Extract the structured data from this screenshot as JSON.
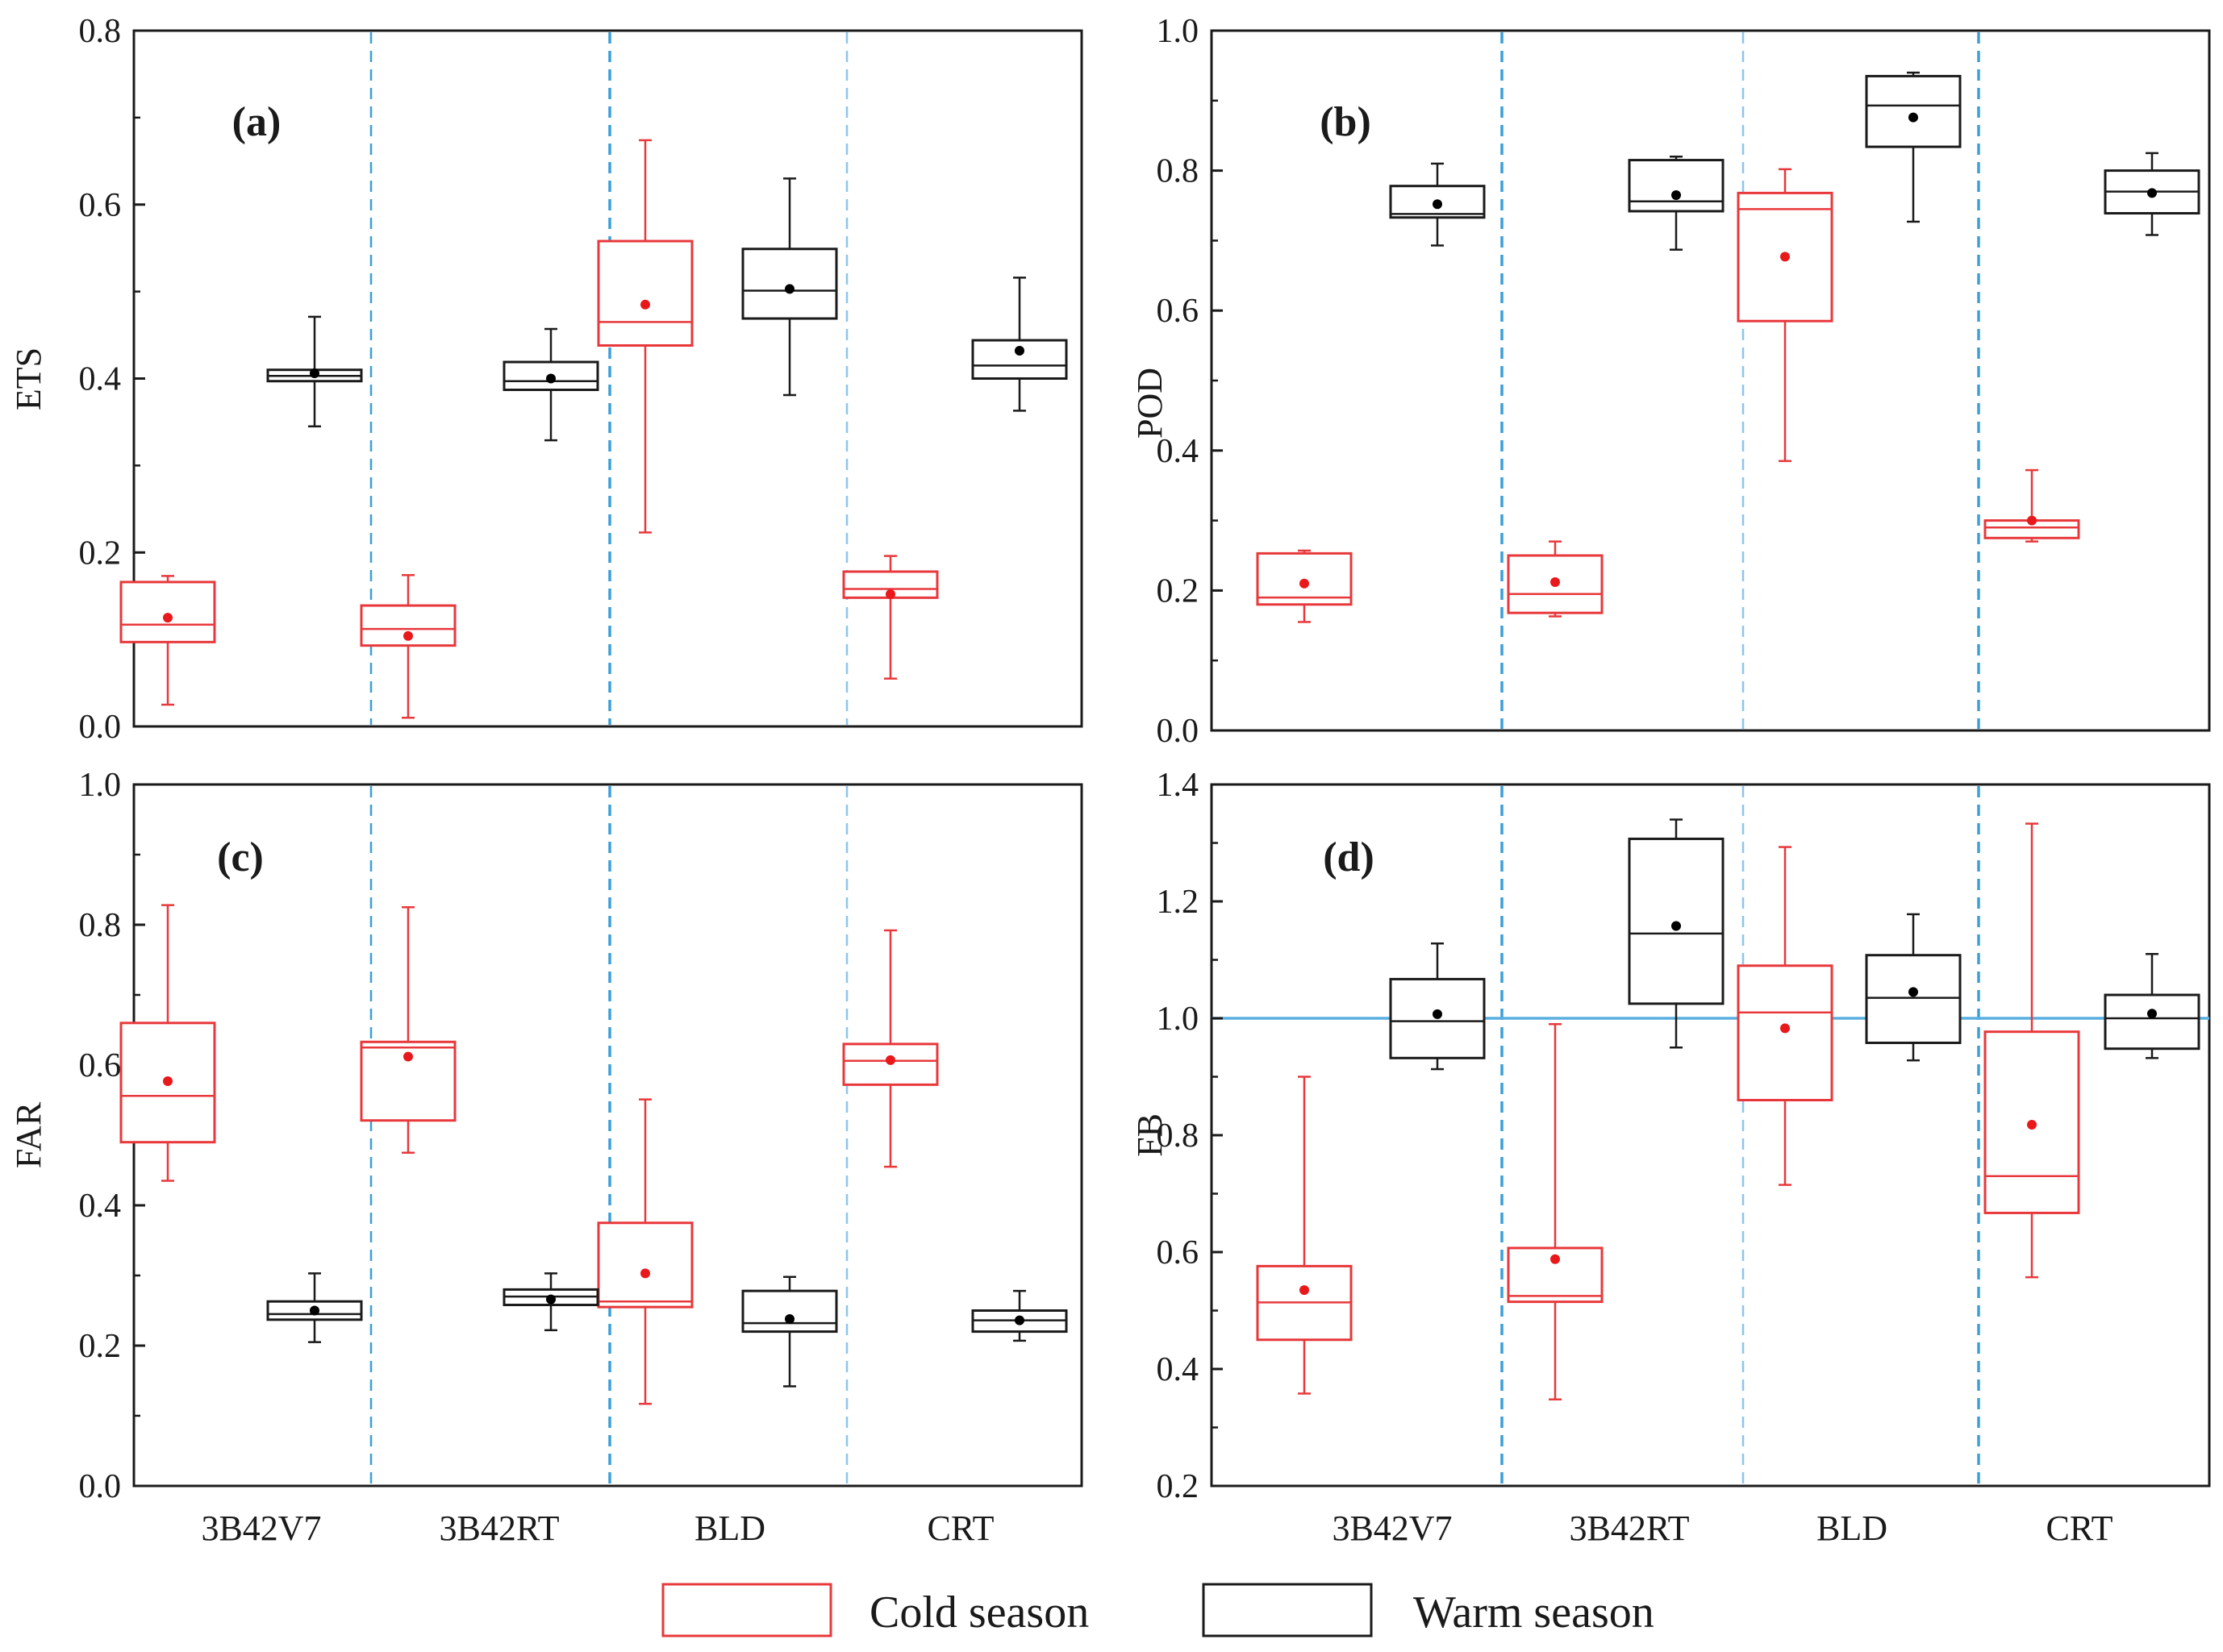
{
  "colors": {
    "cold": "#e8383b",
    "warm": "#1a1a1a",
    "mean_cold": "#e8181b",
    "mean_warm": "#000000",
    "separator": "#3b9fd8",
    "separator_light": "#8cc6ec",
    "reference_line": "#5aaee0",
    "axis": "#1a1a1a"
  },
  "legend": {
    "cold_label": "Cold season",
    "warm_label": "Warm season"
  },
  "chart_data": [
    {
      "type": "box",
      "panel": "(a)",
      "ylabel": "ETS",
      "ylim": [
        0.0,
        0.8
      ],
      "yticks": [
        "0.0",
        "0.2",
        "0.4",
        "0.6",
        "0.8"
      ],
      "categories": [
        "3B42V7",
        "3B42RT",
        "BLD",
        "CRT"
      ],
      "show_xticklabels": true,
      "series": [
        {
          "name": "Cold season",
          "boxes": [
            {
              "whisker_low": 0.025,
              "q1": 0.097,
              "median": 0.117,
              "q3": 0.166,
              "whisker_high": 0.173,
              "mean": 0.125
            },
            {
              "whisker_low": 0.01,
              "q1": 0.093,
              "median": 0.112,
              "q3": 0.139,
              "whisker_high": 0.174,
              "mean": 0.104
            },
            {
              "whisker_low": 0.223,
              "q1": 0.438,
              "median": 0.465,
              "q3": 0.558,
              "whisker_high": 0.674,
              "mean": 0.485
            },
            {
              "whisker_low": 0.055,
              "q1": 0.148,
              "median": 0.158,
              "q3": 0.178,
              "whisker_high": 0.196,
              "mean": 0.152
            }
          ]
        },
        {
          "name": "Warm season",
          "boxes": [
            {
              "whisker_low": 0.345,
              "q1": 0.397,
              "median": 0.403,
              "q3": 0.41,
              "whisker_high": 0.471,
              "mean": 0.406
            },
            {
              "whisker_low": 0.329,
              "q1": 0.387,
              "median": 0.397,
              "q3": 0.419,
              "whisker_high": 0.457,
              "mean": 0.4
            },
            {
              "whisker_low": 0.381,
              "q1": 0.469,
              "median": 0.501,
              "q3": 0.549,
              "whisker_high": 0.63,
              "mean": 0.503
            },
            {
              "whisker_low": 0.363,
              "q1": 0.4,
              "median": 0.415,
              "q3": 0.444,
              "whisker_high": 0.516,
              "mean": 0.432
            }
          ]
        }
      ]
    },
    {
      "type": "box",
      "panel": "(b)",
      "ylabel": "POD",
      "ylim": [
        0.0,
        1.0
      ],
      "yticks": [
        "0.0",
        "0.2",
        "0.4",
        "0.6",
        "0.8",
        "1.0"
      ],
      "categories": [
        "3B42V7",
        "3B42RT",
        "BLD",
        "CRT"
      ],
      "show_xticklabels": false,
      "series": [
        {
          "name": "Cold season",
          "boxes": [
            {
              "whisker_low": 0.155,
              "q1": 0.18,
              "median": 0.19,
              "q3": 0.253,
              "whisker_high": 0.257,
              "mean": 0.21
            },
            {
              "whisker_low": 0.163,
              "q1": 0.168,
              "median": 0.195,
              "q3": 0.25,
              "whisker_high": 0.27,
              "mean": 0.212
            },
            {
              "whisker_low": 0.385,
              "q1": 0.585,
              "median": 0.745,
              "q3": 0.768,
              "whisker_high": 0.802,
              "mean": 0.677
            },
            {
              "whisker_low": 0.27,
              "q1": 0.275,
              "median": 0.29,
              "q3": 0.3,
              "whisker_high": 0.372,
              "mean": 0.3
            }
          ]
        },
        {
          "name": "Warm season",
          "boxes": [
            {
              "whisker_low": 0.693,
              "q1": 0.733,
              "median": 0.738,
              "q3": 0.778,
              "whisker_high": 0.81,
              "mean": 0.752
            },
            {
              "whisker_low": 0.687,
              "q1": 0.742,
              "median": 0.756,
              "q3": 0.815,
              "whisker_high": 0.82,
              "mean": 0.765
            },
            {
              "whisker_low": 0.727,
              "q1": 0.834,
              "median": 0.893,
              "q3": 0.935,
              "whisker_high": 0.94,
              "mean": 0.876
            },
            {
              "whisker_low": 0.708,
              "q1": 0.739,
              "median": 0.77,
              "q3": 0.8,
              "whisker_high": 0.825,
              "mean": 0.768
            }
          ]
        }
      ]
    },
    {
      "type": "box",
      "panel": "(c)",
      "ylabel": "FAR",
      "ylim": [
        0.0,
        1.0
      ],
      "yticks": [
        "0.0",
        "0.2",
        "0.4",
        "0.6",
        "0.8",
        "1.0"
      ],
      "categories": [
        "3B42V7",
        "3B42RT",
        "BLD",
        "CRT"
      ],
      "show_xticklabels": true,
      "series": [
        {
          "name": "Cold season",
          "boxes": [
            {
              "whisker_low": 0.435,
              "q1": 0.49,
              "median": 0.556,
              "q3": 0.66,
              "whisker_high": 0.828,
              "mean": 0.577
            },
            {
              "whisker_low": 0.475,
              "q1": 0.521,
              "median": 0.625,
              "q3": 0.633,
              "whisker_high": 0.825,
              "mean": 0.612
            },
            {
              "whisker_low": 0.117,
              "q1": 0.255,
              "median": 0.263,
              "q3": 0.375,
              "whisker_high": 0.551,
              "mean": 0.303
            },
            {
              "whisker_low": 0.455,
              "q1": 0.572,
              "median": 0.606,
              "q3": 0.63,
              "whisker_high": 0.792,
              "mean": 0.607
            }
          ]
        },
        {
          "name": "Warm season",
          "boxes": [
            {
              "whisker_low": 0.205,
              "q1": 0.237,
              "median": 0.245,
              "q3": 0.263,
              "whisker_high": 0.303,
              "mean": 0.25
            },
            {
              "whisker_low": 0.222,
              "q1": 0.258,
              "median": 0.27,
              "q3": 0.28,
              "whisker_high": 0.303,
              "mean": 0.266
            },
            {
              "whisker_low": 0.142,
              "q1": 0.22,
              "median": 0.232,
              "q3": 0.278,
              "whisker_high": 0.298,
              "mean": 0.238
            },
            {
              "whisker_low": 0.207,
              "q1": 0.22,
              "median": 0.236,
              "q3": 0.25,
              "whisker_high": 0.278,
              "mean": 0.236
            }
          ]
        }
      ]
    },
    {
      "type": "box",
      "panel": "(d)",
      "ylabel": "FB",
      "ylim": [
        0.2,
        1.4
      ],
      "yticks": [
        "0.2",
        "0.4",
        "0.6",
        "0.8",
        "1.0",
        "1.2",
        "1.4"
      ],
      "categories": [
        "3B42V7",
        "3B42RT",
        "BLD",
        "CRT"
      ],
      "show_xticklabels": true,
      "reference_line": 1.0,
      "series": [
        {
          "name": "Cold season",
          "boxes": [
            {
              "whisker_low": 0.358,
              "q1": 0.45,
              "median": 0.514,
              "q3": 0.576,
              "whisker_high": 0.9,
              "mean": 0.535
            },
            {
              "whisker_low": 0.348,
              "q1": 0.515,
              "median": 0.525,
              "q3": 0.607,
              "whisker_high": 0.99,
              "mean": 0.588
            },
            {
              "whisker_low": 0.715,
              "q1": 0.86,
              "median": 1.01,
              "q3": 1.09,
              "whisker_high": 1.293,
              "mean": 0.983
            },
            {
              "whisker_low": 0.557,
              "q1": 0.667,
              "median": 0.73,
              "q3": 0.977,
              "whisker_high": 1.333,
              "mean": 0.818
            }
          ]
        },
        {
          "name": "Warm season",
          "boxes": [
            {
              "whisker_low": 0.913,
              "q1": 0.932,
              "median": 0.995,
              "q3": 1.067,
              "whisker_high": 1.128,
              "mean": 1.007
            },
            {
              "whisker_low": 0.95,
              "q1": 1.025,
              "median": 1.145,
              "q3": 1.307,
              "whisker_high": 1.34,
              "mean": 1.158
            },
            {
              "whisker_low": 0.928,
              "q1": 0.958,
              "median": 1.035,
              "q3": 1.108,
              "whisker_high": 1.178,
              "mean": 1.045
            },
            {
              "whisker_low": 0.932,
              "q1": 0.948,
              "median": 1.0,
              "q3": 1.04,
              "whisker_high": 1.11,
              "mean": 1.008
            }
          ]
        }
      ]
    }
  ]
}
